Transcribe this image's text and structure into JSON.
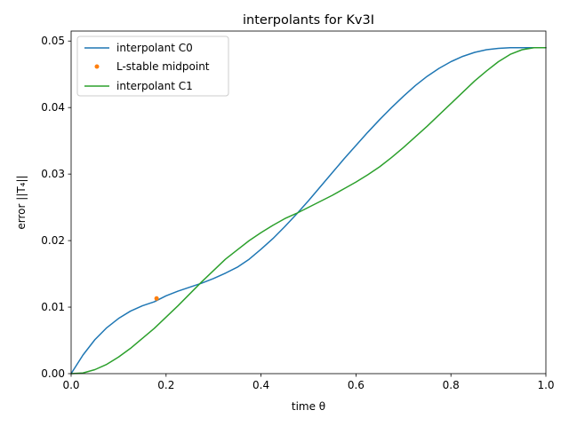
{
  "chart_data": {
    "type": "line",
    "title": "interpolants for Kv3I",
    "xlabel": "time θ",
    "ylabel": "error ||T₄||",
    "xlim": [
      0.0,
      1.0
    ],
    "ylim": [
      0.0,
      0.0515
    ],
    "xticks": [
      "0.0",
      "0.2",
      "0.4",
      "0.6",
      "0.8",
      "1.0"
    ],
    "yticks": [
      "0.00",
      "0.01",
      "0.02",
      "0.03",
      "0.04",
      "0.05"
    ],
    "grid": false,
    "legend_position": "upper left",
    "series": [
      {
        "name": "interpolant C0",
        "color": "#1f77b4",
        "style": "line",
        "x": [
          0.0,
          0.025,
          0.05,
          0.075,
          0.1,
          0.125,
          0.15,
          0.175,
          0.2,
          0.225,
          0.25,
          0.275,
          0.3,
          0.325,
          0.35,
          0.375,
          0.4,
          0.425,
          0.45,
          0.475,
          0.5,
          0.525,
          0.55,
          0.575,
          0.6,
          0.625,
          0.65,
          0.675,
          0.7,
          0.725,
          0.75,
          0.775,
          0.8,
          0.825,
          0.85,
          0.875,
          0.9,
          0.925,
          0.95,
          0.975,
          1.0
        ],
        "y": [
          0.0,
          0.0028,
          0.0051,
          0.0069,
          0.0083,
          0.0094,
          0.0102,
          0.0108,
          0.0117,
          0.0124,
          0.013,
          0.0136,
          0.0143,
          0.0151,
          0.016,
          0.0172,
          0.0187,
          0.0203,
          0.0221,
          0.024,
          0.026,
          0.0281,
          0.0302,
          0.0323,
          0.0343,
          0.0363,
          0.0382,
          0.04,
          0.0417,
          0.0433,
          0.0447,
          0.0459,
          0.0469,
          0.0477,
          0.0483,
          0.0487,
          0.0489,
          0.049,
          0.049,
          0.049,
          0.049
        ]
      },
      {
        "name": "L-stable midpoint",
        "color": "#ff7f0e",
        "style": "marker",
        "x": [
          0.18
        ],
        "y": [
          0.0113
        ]
      },
      {
        "name": "interpolant C1",
        "color": "#2ca02c",
        "style": "line",
        "x": [
          0.0,
          0.025,
          0.05,
          0.075,
          0.1,
          0.125,
          0.15,
          0.175,
          0.2,
          0.225,
          0.25,
          0.275,
          0.3,
          0.325,
          0.35,
          0.375,
          0.4,
          0.425,
          0.45,
          0.475,
          0.5,
          0.525,
          0.55,
          0.575,
          0.6,
          0.625,
          0.65,
          0.675,
          0.7,
          0.725,
          0.75,
          0.775,
          0.8,
          0.825,
          0.85,
          0.875,
          0.9,
          0.925,
          0.95,
          0.975,
          1.0
        ],
        "y": [
          0.0,
          0.0001,
          0.0006,
          0.0014,
          0.0025,
          0.0038,
          0.0053,
          0.0068,
          0.0085,
          0.0102,
          0.012,
          0.0138,
          0.0155,
          0.0172,
          0.0186,
          0.02,
          0.0212,
          0.0223,
          0.0233,
          0.0241,
          0.025,
          0.0259,
          0.0268,
          0.0278,
          0.0288,
          0.0299,
          0.0311,
          0.0325,
          0.034,
          0.0356,
          0.0372,
          0.0389,
          0.0406,
          0.0423,
          0.044,
          0.0455,
          0.0469,
          0.048,
          0.0487,
          0.049,
          0.049
        ]
      }
    ]
  }
}
